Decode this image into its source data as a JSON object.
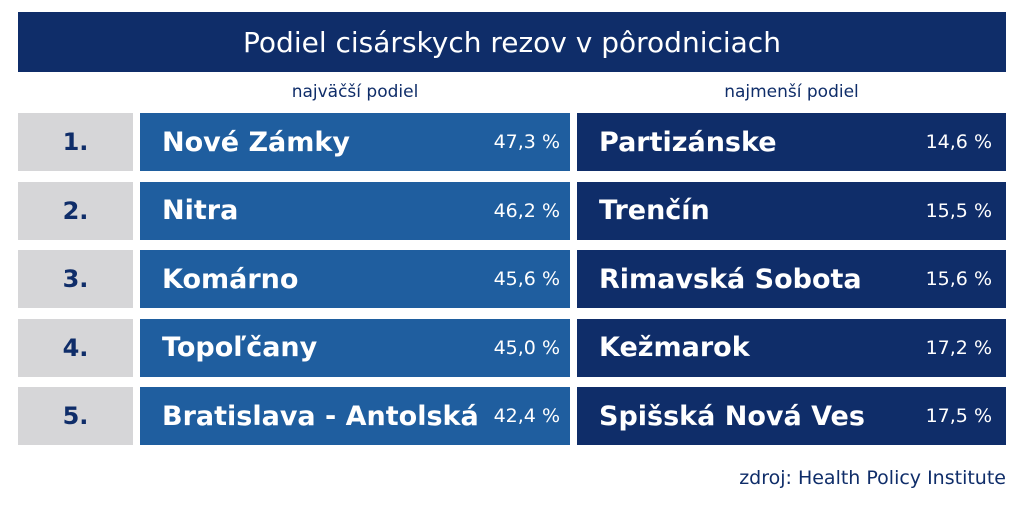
{
  "header": {
    "title": "Podiel cisárskych rezov v pôrodniciach"
  },
  "table": {
    "columns": [
      "najväčší podiel",
      "najmenší podiel"
    ],
    "rows": [
      [
        "1.",
        "Nové Zámky",
        "47,3 %",
        "Partizánske",
        "14,6 %"
      ],
      [
        "2.",
        "Nitra",
        "46,2 %",
        "Trenčín",
        "15,5 %"
      ],
      [
        "3.",
        "Komárno",
        "45,6 %",
        "Rimavská Sobota",
        "15,6 %"
      ],
      [
        "4.",
        "Topoľčany",
        "45,0 %",
        "Kežmarok",
        "17,2 %"
      ],
      [
        "5.",
        "Bratislava - Antolská",
        "42,4 %",
        "Spišská Nová Ves",
        "17,5 %"
      ]
    ]
  },
  "footer": {
    "source": "zdroj: Health Policy Institute"
  }
}
